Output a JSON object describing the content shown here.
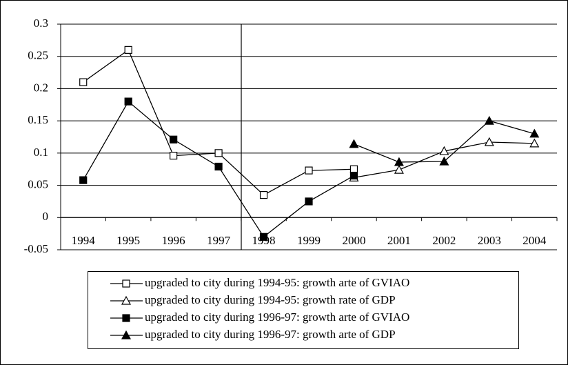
{
  "chart_data": {
    "type": "line",
    "categories": [
      "1994",
      "1995",
      "1996",
      "1997",
      "1998",
      "1999",
      "2000",
      "2001",
      "2002",
      "2003",
      "2004"
    ],
    "series": [
      {
        "name": "upgraded to city during 1994-95: growth arte of GVIAO",
        "color": "#000000",
        "marker": "square",
        "filled": false,
        "values": [
          0.21,
          0.26,
          0.096,
          0.1,
          0.035,
          0.073,
          0.075,
          null,
          null,
          null,
          null
        ]
      },
      {
        "name": "upgraded to city during 1994-95: growth rate of GDP",
        "color": "#000000",
        "marker": "triangle",
        "filled": false,
        "values": [
          null,
          null,
          null,
          null,
          null,
          null,
          0.062,
          0.074,
          0.103,
          0.117,
          0.115
        ]
      },
      {
        "name": "upgraded to city during 1996-97: growth arte of GVIAO",
        "color": "#000000",
        "marker": "square",
        "filled": true,
        "values": [
          0.058,
          0.18,
          0.121,
          0.079,
          -0.03,
          0.025,
          0.065,
          null,
          null,
          null,
          null
        ]
      },
      {
        "name": "upgraded to city during 1996-97: growth arte of GDP",
        "color": "#000000",
        "marker": "triangle",
        "filled": true,
        "values": [
          null,
          null,
          null,
          null,
          null,
          null,
          0.114,
          0.086,
          0.087,
          0.15,
          0.13
        ]
      }
    ],
    "ylim": [
      -0.05,
      0.3
    ],
    "yticks": [
      -0.05,
      0,
      0.05,
      0.1,
      0.15,
      0.2,
      0.25,
      0.3
    ],
    "grid": true,
    "legend": "bottom"
  }
}
